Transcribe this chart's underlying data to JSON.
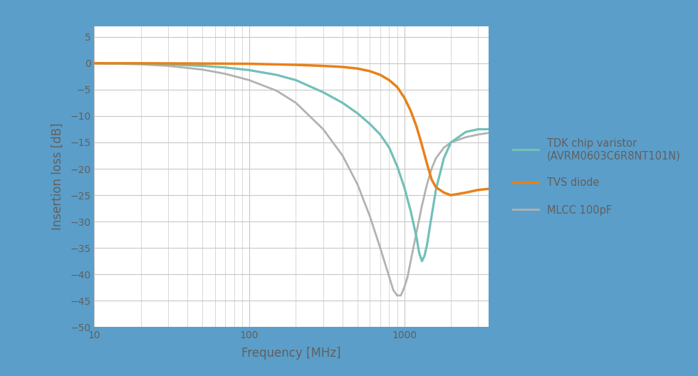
{
  "xlabel": "Frequency [MHz]",
  "ylabel": "Insertion loss [dB]",
  "ylim": [
    -50,
    7
  ],
  "yticks": [
    5,
    0,
    -5,
    -10,
    -15,
    -20,
    -25,
    -30,
    -35,
    -40,
    -45,
    -50
  ],
  "bg_color": "#ffffff",
  "frame_color": "#ffffff",
  "border_color": "#5b9ec9",
  "grid_color": "#c8c8c8",
  "text_color": "#606060",
  "legend": [
    {
      "label": "TDK chip varistor\n(AVRM0603C6R8NT101N)",
      "color": "#72c0b8",
      "lw": 2.3
    },
    {
      "label": "TVS diode",
      "color": "#e8811a",
      "lw": 2.5
    },
    {
      "label": "MLCC 100pF",
      "color": "#b2b2b2",
      "lw": 2.0
    }
  ],
  "varistor_freq": [
    10,
    20,
    30,
    50,
    70,
    100,
    150,
    200,
    300,
    400,
    500,
    600,
    700,
    800,
    900,
    1000,
    1100,
    1200,
    1250,
    1300,
    1350,
    1400,
    1500,
    1600,
    1800,
    2000,
    2500,
    3000,
    3500
  ],
  "varistor_loss": [
    0,
    -0.1,
    -0.2,
    -0.5,
    -0.8,
    -1.3,
    -2.2,
    -3.2,
    -5.5,
    -7.5,
    -9.5,
    -11.5,
    -13.5,
    -16.0,
    -19.5,
    -23.5,
    -28.0,
    -33.0,
    -36.0,
    -37.5,
    -36.5,
    -34.5,
    -29.0,
    -24.0,
    -18.0,
    -15.0,
    -13.0,
    -12.5,
    -12.5
  ],
  "tvs_freq": [
    10,
    20,
    50,
    100,
    200,
    300,
    400,
    500,
    600,
    700,
    800,
    900,
    1000,
    1100,
    1200,
    1300,
    1400,
    1500,
    1600,
    1800,
    2000,
    2500,
    3000,
    3500
  ],
  "tvs_loss": [
    0,
    0,
    -0.05,
    -0.1,
    -0.3,
    -0.5,
    -0.7,
    -1.0,
    -1.5,
    -2.2,
    -3.2,
    -4.5,
    -6.5,
    -9.0,
    -12.0,
    -15.5,
    -19.0,
    -22.0,
    -23.5,
    -24.5,
    -25.0,
    -24.5,
    -24.0,
    -23.8
  ],
  "mlcc_freq": [
    10,
    20,
    30,
    50,
    70,
    100,
    150,
    200,
    300,
    400,
    500,
    600,
    700,
    800,
    850,
    900,
    950,
    1000,
    1050,
    1100,
    1200,
    1300,
    1400,
    1500,
    1600,
    1800,
    2000,
    2500,
    3000,
    3500
  ],
  "mlcc_loss": [
    0,
    -0.2,
    -0.5,
    -1.2,
    -2.0,
    -3.2,
    -5.2,
    -7.5,
    -12.5,
    -17.5,
    -23.0,
    -29.0,
    -35.0,
    -40.5,
    -43.0,
    -44.0,
    -44.0,
    -42.5,
    -40.5,
    -37.5,
    -32.0,
    -27.0,
    -23.0,
    -20.0,
    -18.0,
    -16.0,
    -15.0,
    -14.0,
    -13.5,
    -13.2
  ]
}
